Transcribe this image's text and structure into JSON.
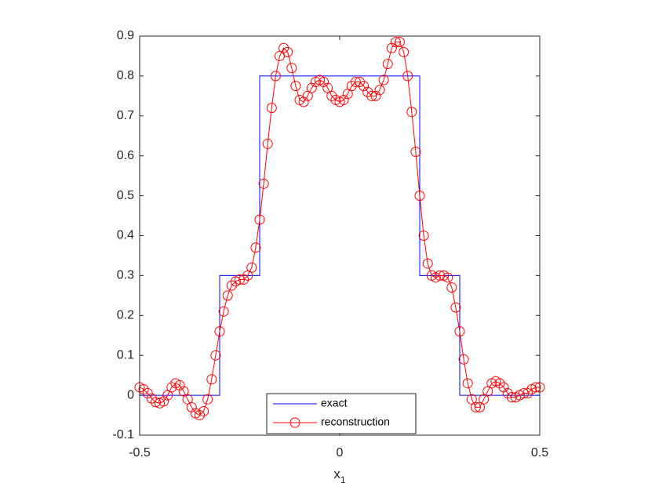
{
  "chart_data": {
    "type": "line",
    "x_label": "x",
    "x_label_subscript": "1",
    "xlim": [
      -0.5,
      0.5
    ],
    "xticks": [
      -0.5,
      0,
      0.5
    ],
    "ylim": [
      -0.1,
      0.9
    ],
    "yticks": [
      -0.1,
      0,
      0.1,
      0.2,
      0.3,
      0.4,
      0.5,
      0.6,
      0.7,
      0.8,
      0.9
    ],
    "legend": "lower center",
    "grid": false,
    "series": [
      {
        "name": "exact",
        "color": "#0000ff",
        "marker": "none",
        "x": [
          -0.5,
          -0.3,
          -0.3,
          -0.2,
          -0.2,
          0.2,
          0.2,
          0.3,
          0.3,
          0.5
        ],
        "values": [
          0,
          0,
          0.3,
          0.3,
          0.8,
          0.8,
          0.3,
          0.3,
          0,
          0
        ]
      },
      {
        "name": "reconstruction",
        "color": "#ff0000",
        "marker": "circle",
        "x": [
          -0.5,
          -0.49,
          -0.48,
          -0.47,
          -0.46,
          -0.45,
          -0.44,
          -0.43,
          -0.42,
          -0.41,
          -0.4,
          -0.39,
          -0.38,
          -0.37,
          -0.36,
          -0.35,
          -0.34,
          -0.33,
          -0.32,
          -0.31,
          -0.3,
          -0.29,
          -0.28,
          -0.27,
          -0.26,
          -0.25,
          -0.24,
          -0.23,
          -0.22,
          -0.21,
          -0.2,
          -0.19,
          -0.18,
          -0.17,
          -0.16,
          -0.15,
          -0.14,
          -0.13,
          -0.12,
          -0.11,
          -0.1,
          -0.09,
          -0.08,
          -0.07,
          -0.06,
          -0.05,
          -0.04,
          -0.03,
          -0.02,
          -0.01,
          0,
          0.01,
          0.02,
          0.03,
          0.04,
          0.05,
          0.06,
          0.07,
          0.08,
          0.09,
          0.1,
          0.11,
          0.12,
          0.13,
          0.14,
          0.15,
          0.16,
          0.17,
          0.18,
          0.19,
          0.2,
          0.21,
          0.22,
          0.23,
          0.24,
          0.25,
          0.26,
          0.27,
          0.28,
          0.29,
          0.3,
          0.31,
          0.32,
          0.33,
          0.34,
          0.35,
          0.36,
          0.37,
          0.38,
          0.39,
          0.4,
          0.41,
          0.42,
          0.43,
          0.44,
          0.45,
          0.46,
          0.47,
          0.48,
          0.49,
          0.5
        ],
        "values": [
          0.02,
          0.015,
          0.005,
          -0.008,
          -0.017,
          -0.02,
          -0.015,
          0,
          0.02,
          0.03,
          0.025,
          0.01,
          -0.01,
          -0.03,
          -0.045,
          -0.05,
          -0.04,
          -0.01,
          0.04,
          0.1,
          0.16,
          0.21,
          0.25,
          0.275,
          0.285,
          0.29,
          0.29,
          0.3,
          0.32,
          0.37,
          0.44,
          0.53,
          0.63,
          0.72,
          0.8,
          0.85,
          0.87,
          0.86,
          0.82,
          0.775,
          0.74,
          0.735,
          0.75,
          0.77,
          0.785,
          0.79,
          0.785,
          0.77,
          0.75,
          0.74,
          0.735,
          0.74,
          0.755,
          0.775,
          0.785,
          0.785,
          0.775,
          0.76,
          0.75,
          0.75,
          0.765,
          0.79,
          0.83,
          0.87,
          0.885,
          0.885,
          0.86,
          0.8,
          0.71,
          0.61,
          0.5,
          0.4,
          0.33,
          0.3,
          0.295,
          0.3,
          0.3,
          0.295,
          0.27,
          0.22,
          0.16,
          0.09,
          0.03,
          -0.01,
          -0.03,
          -0.03,
          -0.01,
          0.01,
          0.03,
          0.035,
          0.03,
          0.02,
          0.005,
          -0.005,
          -0.005,
          0,
          0.005,
          0.005,
          0.015,
          0.02,
          0.02
        ]
      }
    ]
  }
}
